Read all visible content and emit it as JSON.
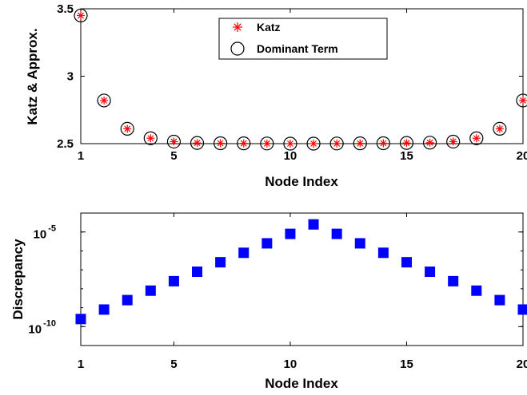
{
  "chart_data": [
    {
      "type": "scatter",
      "xlabel": "Node Index",
      "ylabel": "Katz & Approx.",
      "xlim": [
        1,
        20
      ],
      "ylim": [
        2.5,
        3.5
      ],
      "xticks": [
        "1",
        "5",
        "10",
        "15",
        "20"
      ],
      "yticks": [
        "2.5",
        "3",
        "3.5"
      ],
      "legend": {
        "position": "top-center",
        "entries": [
          "Katz",
          "Dominant Term"
        ]
      },
      "series": [
        {
          "name": "Katz",
          "marker": "asterisk",
          "color": "#ff0000",
          "x": [
            1,
            2,
            3,
            4,
            5,
            6,
            7,
            8,
            9,
            10,
            11,
            12,
            13,
            14,
            15,
            16,
            17,
            18,
            19,
            20
          ],
          "y": [
            3.45,
            2.82,
            2.61,
            2.54,
            2.515,
            2.505,
            2.503,
            2.502,
            2.501,
            2.5,
            2.5,
            2.501,
            2.502,
            2.503,
            2.505,
            2.507,
            2.515,
            2.54,
            2.61,
            2.82
          ]
        },
        {
          "name": "Dominant Term",
          "marker": "open-circle",
          "color": "#000000",
          "x": [
            1,
            2,
            3,
            4,
            5,
            6,
            7,
            8,
            9,
            10,
            11,
            12,
            13,
            14,
            15,
            16,
            17,
            18,
            19,
            20
          ],
          "y": [
            3.45,
            2.82,
            2.61,
            2.54,
            2.515,
            2.505,
            2.503,
            2.502,
            2.501,
            2.5,
            2.5,
            2.501,
            2.502,
            2.503,
            2.505,
            2.507,
            2.515,
            2.54,
            2.61,
            2.82
          ]
        }
      ]
    },
    {
      "type": "scatter",
      "xlabel": "Node Index",
      "ylabel": "Discrepancy",
      "xlim": [
        1,
        20
      ],
      "yscale": "log",
      "ylim_exp": [
        -11,
        -4
      ],
      "xticks": [
        "1",
        "5",
        "10",
        "15",
        "20"
      ],
      "yticks": [
        {
          "base": "10",
          "exp": "-10"
        },
        {
          "base": "10",
          "exp": "-5"
        }
      ],
      "series": [
        {
          "marker": "filled-square",
          "color": "#0000ff",
          "x": [
            1,
            2,
            3,
            4,
            5,
            6,
            7,
            8,
            9,
            10,
            11,
            12,
            13,
            14,
            15,
            16,
            17,
            18,
            19,
            20
          ],
          "y_exp": [
            -9.6,
            -9.1,
            -8.6,
            -8.1,
            -7.6,
            -7.1,
            -6.6,
            -6.1,
            -5.6,
            -5.1,
            -4.6,
            -5.1,
            -5.6,
            -6.1,
            -6.6,
            -7.1,
            -7.6,
            -8.1,
            -8.6,
            -9.1
          ]
        }
      ]
    }
  ]
}
